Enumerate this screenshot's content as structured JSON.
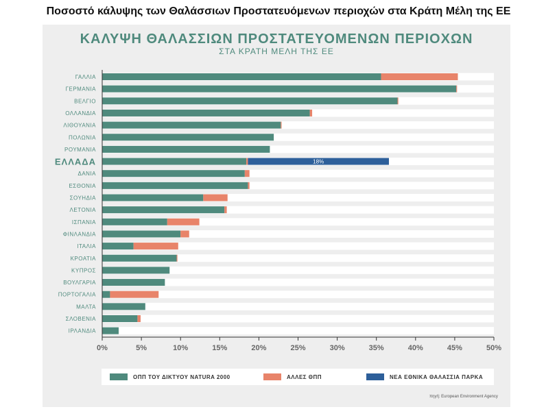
{
  "page": {
    "title": "Ποσοστό κάλυψης των Θαλάσσιων Προστατευόμενων περιοχών στα Κράτη Μέλη της ΕΕ"
  },
  "colors": {
    "natura": "#4f8a7d",
    "other": "#e8846a",
    "park": "#2d5f9a",
    "track": "#ffffff",
    "panel": "#eeeeee",
    "label": "#4f8a7d"
  },
  "chart_data": {
    "type": "bar",
    "orientation": "horizontal",
    "stacked": true,
    "title": "ΚΑΛΥΨΗ ΘΑΛΑΣΣΙΩΝ ΠΡΟΣΤΑΤΕΥΟΜΕΝΩΝ ΠΕΡΙΟΧΩΝ",
    "subtitle": "ΣΤΑ ΚΡΑΤΗ ΜΕΛΗ ΤΗΣ ΕΕ",
    "categories": [
      "ΓΑΛΛΙΑ",
      "ΓΕΡΜΑΝΙΑ",
      "ΒΕΛΓΙΟ",
      "ΟΛΛΑΝΔΙΑ",
      "ΛΙΘΟΥΑΝΙΑ",
      "ΠΟΛΩΝΙΑ",
      "ΡΟΥΜΑΝΙΑ",
      "ΕΛΛΑΔΑ",
      "ΔΑΝΙΑ",
      "ΕΣΘΟΝΙΑ",
      "ΣΟΥΗΔΙΑ",
      "ΛΕΤΟΝΙΑ",
      "ΙΣΠΑΝΙΑ",
      "ΦΙΝΛΑΝΔΙΑ",
      "ΙΤΑΛΙΑ",
      "ΚΡΟΑΤΙΑ",
      "ΚΥΠΡΟΣ",
      "ΒΟΥΛΓΑΡΙΑ",
      "ΠΟΡΤΟΓΑΛΙΑ",
      "ΜΑΛΤΑ",
      "ΣΛΟΒΕΝΙΑ",
      "ΙΡΛΑΝΔΙΑ"
    ],
    "highlight_category": "ΕΛΛΑΔΑ",
    "series": [
      {
        "name": "ΟΠΠ ΤΟΥ ΔΙΚΤΥΟΥ NATURA 2000",
        "color": "#4f8a7d",
        "values": [
          35.6,
          45.2,
          37.7,
          26.5,
          22.8,
          21.9,
          21.4,
          18.4,
          18.2,
          18.6,
          12.9,
          15.6,
          8.3,
          10.0,
          4.0,
          9.5,
          8.6,
          8.0,
          1.0,
          5.5,
          4.5,
          2.1
        ]
      },
      {
        "name": "ΑΛΛΕΣ ΘΠΠ",
        "color": "#e8846a",
        "values": [
          9.8,
          0.1,
          0.1,
          0.3,
          0.1,
          0.0,
          0.0,
          0.2,
          0.6,
          0.2,
          3.1,
          0.3,
          4.1,
          1.1,
          5.7,
          0.1,
          0.0,
          0.0,
          6.2,
          0.0,
          0.4,
          0.0
        ]
      },
      {
        "name": "ΝΕΑ ΕΘΝΙΚΑ ΘΑΛΑΣΣΙΑ ΠΑΡΚΑ",
        "color": "#2d5f9a",
        "values": [
          0,
          0,
          0,
          0,
          0,
          0,
          0,
          18,
          0,
          0,
          0,
          0,
          0,
          0,
          0,
          0,
          0,
          0,
          0,
          0,
          0,
          0
        ]
      }
    ],
    "data_labels": [
      {
        "category": "ΕΛΛΑΔΑ",
        "series": "ΝΕΑ ΕΘΝΙΚΑ ΘΑΛΑΣΣΙΑ ΠΑΡΚΑ",
        "text": "18%"
      }
    ],
    "xlim": [
      0,
      50
    ],
    "xticks": [
      "0%",
      "5%",
      "10%",
      "15%",
      "20%",
      "25%",
      "30%",
      "35%",
      "40%",
      "45%",
      "50%"
    ],
    "xtick_values": [
      0,
      5,
      10,
      15,
      20,
      25,
      30,
      35,
      40,
      45,
      50
    ],
    "xlabel": "",
    "ylabel": "",
    "legend": "bottom",
    "grid": false
  },
  "source": "πηγή: European Environment Agency"
}
